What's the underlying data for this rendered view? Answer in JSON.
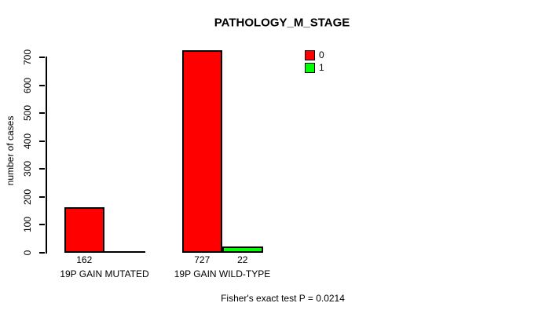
{
  "chart_data": {
    "type": "bar",
    "title": "PATHOLOGY_M_STAGE",
    "xlabel": "",
    "ylabel": "number of cases",
    "categories": [
      "19P GAIN MUTATED",
      "19P GAIN WILD-TYPE"
    ],
    "series": [
      {
        "name": "0",
        "color": "#FF0000",
        "values": [
          162,
          727
        ]
      },
      {
        "name": "1",
        "color": "#00FF00",
        "values": [
          0,
          22
        ]
      }
    ],
    "bar_value_labels": [
      [
        "162",
        null
      ],
      [
        "727",
        "22"
      ]
    ],
    "ylim": [
      0,
      700
    ],
    "yticks": [
      0,
      100,
      200,
      300,
      400,
      500,
      600,
      700
    ],
    "grid": false,
    "legend_position": "inside-top-right",
    "annotation": "Fisher's exact test P = 0.0214"
  },
  "colors": {
    "background": "#FFFFFF",
    "axis": "#000000",
    "series_0": "#FF0000",
    "series_1": "#00FF00"
  }
}
